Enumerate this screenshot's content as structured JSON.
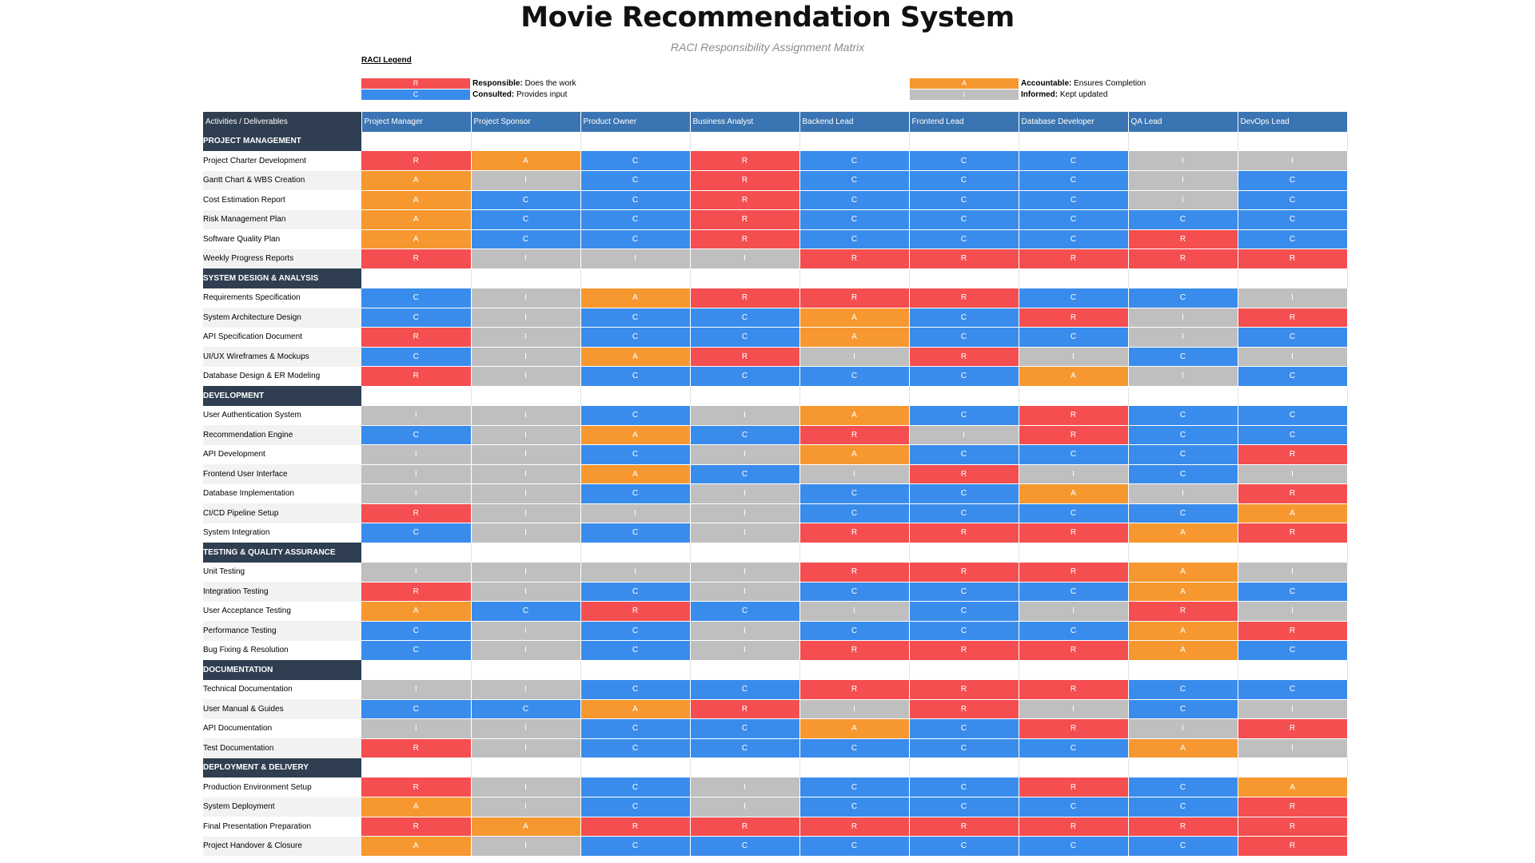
{
  "title": "Movie Recommendation System",
  "subtitle": "RACI Responsibility Assignment Matrix",
  "legend": {
    "title": "RACI Legend",
    "items": [
      {
        "code": "R",
        "term": "Responsible:",
        "desc": " Does the work",
        "color": "#f44e50"
      },
      {
        "code": "C",
        "term": "Consulted:",
        "desc": " Provides input",
        "color": "#3a8cec"
      },
      {
        "code": "A",
        "term": "Accountable:",
        "desc": " Ensures Completion",
        "color": "#f6982f"
      },
      {
        "code": "I",
        "term": "Informed:",
        "desc": " Kept updated",
        "color": "#bfbfbf"
      }
    ]
  },
  "colors": {
    "header": "#3a74b2",
    "section": "#2f3e50",
    "R": "#f44e50",
    "A": "#f6982f",
    "C": "#3a8cec",
    "I": "#bfbfbf"
  },
  "columns": [
    "Activities / Deliverables",
    "Project Manager",
    "Project Sponsor",
    "Product Owner",
    "Business Analyst",
    "Backend Lead",
    "Frontend Lead",
    "Database Developer",
    "QA  Lead",
    "DevOps Lead"
  ],
  "sections": [
    {
      "name": "PROJECT MANAGEMENT",
      "rows": [
        {
          "activity": "Project Charter Development",
          "raci": [
            "R",
            "A",
            "C",
            "R",
            "C",
            "C",
            "C",
            "I",
            "I"
          ]
        },
        {
          "activity": "Gantt Chart & WBS Creation",
          "raci": [
            "A",
            "I",
            "C",
            "R",
            "C",
            "C",
            "C",
            "I",
            "C"
          ]
        },
        {
          "activity": "Cost Estimation Report",
          "raci": [
            "A",
            "C",
            "C",
            "R",
            "C",
            "C",
            "C",
            "I",
            "C"
          ]
        },
        {
          "activity": "Risk Management Plan",
          "raci": [
            "A",
            "C",
            "C",
            "R",
            "C",
            "C",
            "C",
            "C",
            "C"
          ]
        },
        {
          "activity": "Software Quality Plan",
          "raci": [
            "A",
            "C",
            "C",
            "R",
            "C",
            "C",
            "C",
            "R",
            "C"
          ]
        },
        {
          "activity": "Weekly Progress Reports",
          "raci": [
            "R",
            "I",
            "I",
            "I",
            "R",
            "R",
            "R",
            "R",
            "R"
          ]
        }
      ]
    },
    {
      "name": "SYSTEM DESIGN & ANALYSIS",
      "rows": [
        {
          "activity": "Requirements Specification",
          "raci": [
            "C",
            "I",
            "A",
            "R",
            "R",
            "R",
            "C",
            "C",
            "I"
          ]
        },
        {
          "activity": "System Architecture Design",
          "raci": [
            "C",
            "I",
            "C",
            "C",
            "A",
            "C",
            "R",
            "I",
            "R"
          ]
        },
        {
          "activity": "API Specification Document",
          "raci": [
            "R",
            "I",
            "C",
            "C",
            "A",
            "C",
            "C",
            "I",
            "C"
          ]
        },
        {
          "activity": "UI/UX Wireframes & Mockups",
          "raci": [
            "C",
            "I",
            "A",
            "R",
            "I",
            "R",
            "I",
            "C",
            "I"
          ]
        },
        {
          "activity": "Database Design & ER Modeling",
          "raci": [
            "R",
            "I",
            "C",
            "C",
            "C",
            "C",
            "A",
            "I",
            "C"
          ]
        }
      ]
    },
    {
      "name": "DEVELOPMENT",
      "rows": [
        {
          "activity": "User Authentication System",
          "raci": [
            "I",
            "I",
            "C",
            "I",
            "A",
            "C",
            "R",
            "C",
            "C"
          ]
        },
        {
          "activity": "Recommendation Engine",
          "raci": [
            "C",
            "I",
            "A",
            "C",
            "R",
            "I",
            "R",
            "C",
            "C"
          ]
        },
        {
          "activity": "API Development",
          "raci": [
            "I",
            "I",
            "C",
            "I",
            "A",
            "C",
            "C",
            "C",
            "R"
          ]
        },
        {
          "activity": "Frontend User Interface",
          "raci": [
            "I",
            "I",
            "A",
            "C",
            "I",
            "R",
            "I",
            "C",
            "I"
          ]
        },
        {
          "activity": "Database Implementation",
          "raci": [
            "I",
            "I",
            "C",
            "I",
            "C",
            "C",
            "A",
            "I",
            "R"
          ]
        },
        {
          "activity": "CI/CD Pipeline Setup",
          "raci": [
            "R",
            "I",
            "I",
            "I",
            "C",
            "C",
            "C",
            "C",
            "A"
          ]
        },
        {
          "activity": "System Integration",
          "raci": [
            "C",
            "I",
            "C",
            "I",
            "R",
            "R",
            "R",
            "A",
            "R"
          ]
        }
      ]
    },
    {
      "name": "TESTING & QUALITY ASSURANCE",
      "rows": [
        {
          "activity": "Unit Testing",
          "raci": [
            "I",
            "I",
            "I",
            "I",
            "R",
            "R",
            "R",
            "A",
            "I"
          ]
        },
        {
          "activity": "Integration Testing",
          "raci": [
            "R",
            "I",
            "C",
            "I",
            "C",
            "C",
            "C",
            "A",
            "C"
          ]
        },
        {
          "activity": "User Acceptance Testing",
          "raci": [
            "A",
            "C",
            "R",
            "C",
            "I",
            "C",
            "I",
            "R",
            "I"
          ]
        },
        {
          "activity": "Performance Testing",
          "raci": [
            "C",
            "I",
            "C",
            "I",
            "C",
            "C",
            "C",
            "A",
            "R"
          ]
        },
        {
          "activity": "Bug Fixing & Resolution",
          "raci": [
            "C",
            "I",
            "C",
            "I",
            "R",
            "R",
            "R",
            "A",
            "C"
          ]
        }
      ]
    },
    {
      "name": "DOCUMENTATION",
      "rows": [
        {
          "activity": "Technical Documentation",
          "raci": [
            "I",
            "I",
            "C",
            "C",
            "R",
            "R",
            "R",
            "C",
            "C"
          ]
        },
        {
          "activity": "User Manual & Guides",
          "raci": [
            "C",
            "C",
            "A",
            "R",
            "I",
            "R",
            "I",
            "C",
            "I"
          ]
        },
        {
          "activity": "API Documentation",
          "raci": [
            "I",
            "I",
            "C",
            "C",
            "A",
            "C",
            "R",
            "I",
            "R"
          ]
        },
        {
          "activity": "Test Documentation",
          "raci": [
            "R",
            "I",
            "C",
            "C",
            "C",
            "C",
            "C",
            "A",
            "I"
          ]
        }
      ]
    },
    {
      "name": "DEPLOYMENT & DELIVERY",
      "rows": [
        {
          "activity": "Production Environment Setup",
          "raci": [
            "R",
            "I",
            "C",
            "I",
            "C",
            "C",
            "R",
            "C",
            "A"
          ]
        },
        {
          "activity": "System Deployment",
          "raci": [
            "A",
            "I",
            "C",
            "I",
            "C",
            "C",
            "C",
            "C",
            "R"
          ]
        },
        {
          "activity": "Final Presentation Preparation",
          "raci": [
            "R",
            "A",
            "R",
            "R",
            "R",
            "R",
            "R",
            "R",
            "R"
          ]
        },
        {
          "activity": "Project Handover & Closure",
          "raci": [
            "A",
            "I",
            "C",
            "C",
            "C",
            "C",
            "C",
            "C",
            "R"
          ]
        }
      ]
    }
  ]
}
